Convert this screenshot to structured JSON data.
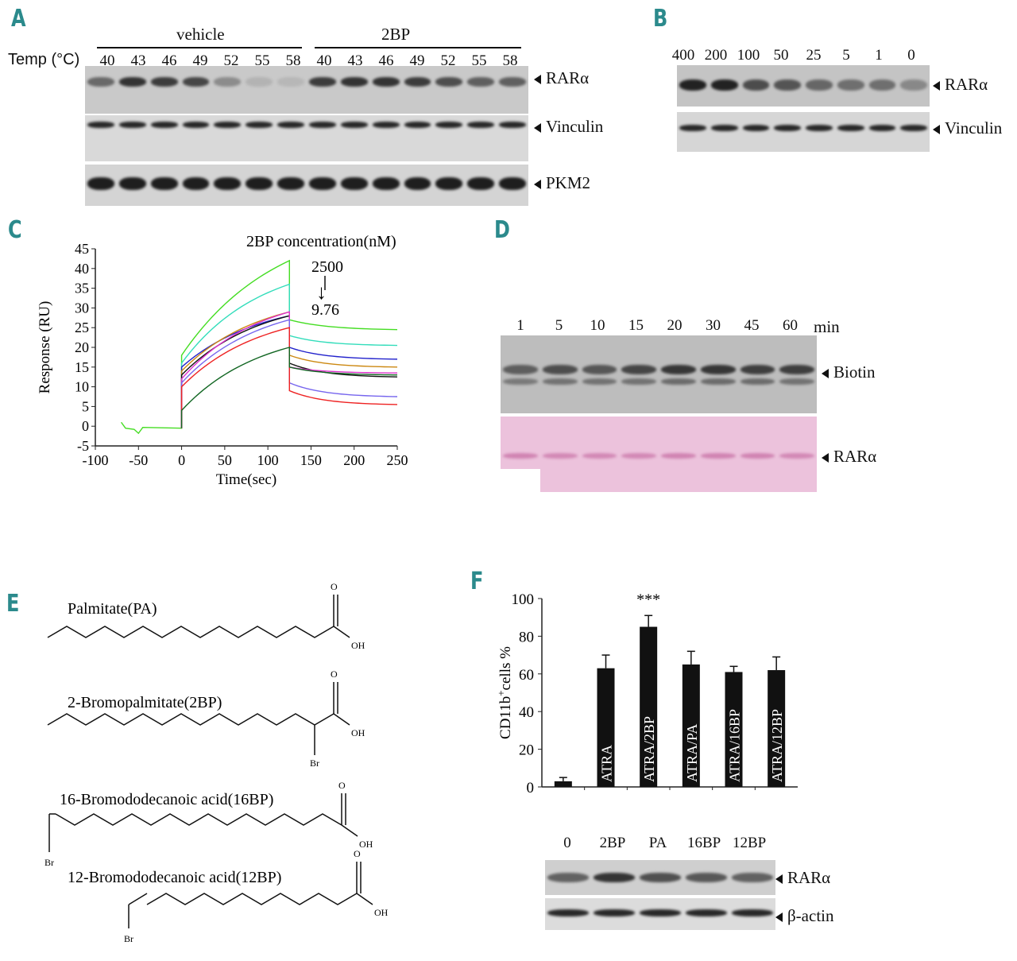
{
  "panels": {
    "A": {
      "letter": "A",
      "group_labels": [
        "vehicle",
        "2BP"
      ],
      "temp_label": "Temp (°C)",
      "temps": [
        "40",
        "43",
        "46",
        "49",
        "52",
        "55",
        "58",
        "40",
        "43",
        "46",
        "49",
        "52",
        "55",
        "58"
      ],
      "bands": [
        "RARα",
        "Vinculin",
        "PKM2"
      ],
      "rar_intensity": [
        0.55,
        0.85,
        0.8,
        0.75,
        0.35,
        0.12,
        0.1,
        0.8,
        0.85,
        0.85,
        0.8,
        0.7,
        0.6,
        0.6
      ]
    },
    "B": {
      "letter": "B",
      "concentrations": [
        "400",
        "200",
        "100",
        "50",
        "25",
        "5",
        "1",
        "0 μM"
      ],
      "bands": [
        "RARα",
        "Vinculin"
      ],
      "rar_intensity": [
        0.95,
        0.95,
        0.7,
        0.65,
        0.55,
        0.5,
        0.5,
        0.35
      ]
    },
    "C": {
      "letter": "C",
      "legend_title": "2BP concentration(nM)",
      "legend_high": "2500",
      "legend_low": "9.76",
      "arrow_symbol": "↓"
    },
    "D": {
      "letter": "D",
      "times": [
        "1",
        "5",
        "10",
        "15",
        "20",
        "30",
        "45",
        "60"
      ],
      "time_unit": "min",
      "bands": [
        "Biotin",
        "RARα"
      ]
    },
    "E": {
      "letter": "E",
      "compounds": [
        {
          "name": "Palmitate(PA)"
        },
        {
          "name": "2-Bromopalmitate(2BP)"
        },
        {
          "name": "16-Bromododecanoic acid(16BP)"
        },
        {
          "name": "12-Bromododecanoic acid(12BP)"
        }
      ],
      "atoms": {
        "oxygen": "O",
        "hydroxyl": "OH",
        "bromine": "Br"
      }
    },
    "F": {
      "letter": "F",
      "significance": "***",
      "blot_lanes": [
        "0",
        "2BP",
        "PA",
        "16BP",
        "12BP"
      ],
      "bands": [
        "RARα",
        "β-actin"
      ]
    }
  },
  "chart_data": [
    {
      "type": "line",
      "panel": "C",
      "title": "",
      "xlabel": "Time(sec)",
      "ylabel": "Response (RU)",
      "xlim": [
        -100,
        250
      ],
      "ylim": [
        -5,
        45
      ],
      "xticks": [
        "-100",
        "-50",
        "0",
        "50",
        "100",
        "150",
        "200",
        "250"
      ],
      "yticks": [
        "-5",
        "0",
        "5",
        "10",
        "15",
        "20",
        "25",
        "30",
        "35",
        "40",
        "45"
      ],
      "grid": false,
      "series": [
        {
          "color": "#44dd22",
          "values": [
            [
              -70,
              1
            ],
            [
              -50,
              -0.5
            ],
            [
              0,
              -0.5
            ],
            [
              0,
              18
            ],
            [
              125,
              42
            ],
            [
              125,
              27
            ],
            [
              250,
              24.5
            ]
          ]
        },
        {
          "color": "#33ddbb",
          "values": [
            [
              0,
              16
            ],
            [
              125,
              36
            ],
            [
              125,
              23
            ],
            [
              250,
              20.5
            ]
          ]
        },
        {
          "color": "#2222cc",
          "values": [
            [
              0,
              15
            ],
            [
              125,
              28
            ],
            [
              125,
              20
            ],
            [
              250,
              17
            ]
          ]
        },
        {
          "color": "#cc8811",
          "values": [
            [
              0,
              14
            ],
            [
              125,
              29
            ],
            [
              125,
              18
            ],
            [
              250,
              15
            ]
          ]
        },
        {
          "color": "#111111",
          "values": [
            [
              0,
              13
            ],
            [
              125,
              28
            ],
            [
              125,
              16
            ],
            [
              250,
              12.5
            ]
          ]
        },
        {
          "color": "#dd33cc",
          "values": [
            [
              0,
              12
            ],
            [
              125,
              29
            ],
            [
              125,
              15
            ],
            [
              250,
              13.5
            ]
          ]
        },
        {
          "color": "#7766ee",
          "values": [
            [
              0,
              11
            ],
            [
              125,
              27
            ],
            [
              125,
              11
            ],
            [
              250,
              7.5
            ]
          ]
        },
        {
          "color": "#ee2222",
          "values": [
            [
              0,
              10
            ],
            [
              125,
              25
            ],
            [
              125,
              9
            ],
            [
              250,
              5.5
            ]
          ]
        },
        {
          "color": "#116622",
          "values": [
            [
              0,
              4
            ],
            [
              125,
              20
            ],
            [
              125,
              15
            ],
            [
              250,
              13
            ]
          ]
        }
      ]
    },
    {
      "type": "bar",
      "panel": "F",
      "title": "",
      "ylabel": "CD11b+cells %",
      "ylim": [
        0,
        100
      ],
      "yticks": [
        "0",
        "20",
        "40",
        "60",
        "80",
        "100"
      ],
      "categories": [
        "",
        "ATRA",
        "ATRA/2BP",
        "ATRA/PA",
        "ATRA/16BP",
        "ATRA/12BP"
      ],
      "values": [
        3,
        63,
        85,
        65,
        61,
        62
      ],
      "errors": [
        2,
        7,
        6,
        7,
        3,
        7
      ],
      "bar_color": "#111111"
    }
  ]
}
